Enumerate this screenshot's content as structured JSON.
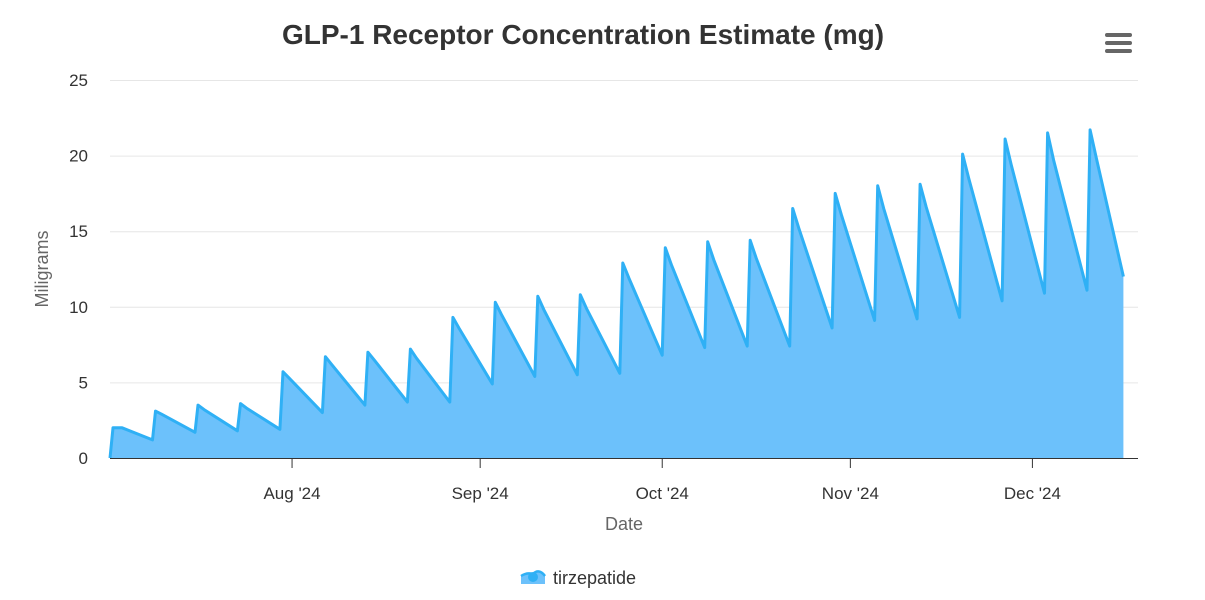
{
  "chart_data": {
    "type": "area",
    "title": "GLP-1 Receptor Concentration Estimate (mg)",
    "xlabel": "Date",
    "ylabel": "Miligrams",
    "x_unit": "days since 2024-07-02",
    "xlim": [
      0,
      169.4
    ],
    "ylim": [
      0,
      25
    ],
    "yticks": [
      0,
      5,
      10,
      15,
      20,
      25
    ],
    "xticks": [
      {
        "day": 30,
        "label": "Aug '24"
      },
      {
        "day": 61,
        "label": "Sep '24"
      },
      {
        "day": 91,
        "label": "Oct '24"
      },
      {
        "day": 122,
        "label": "Nov '24"
      },
      {
        "day": 152,
        "label": "Dec '24"
      }
    ],
    "grid": true,
    "legend_position": "bottom-center",
    "colors": {
      "line": "#2fb0f5",
      "fill": "#6cc1fb"
    },
    "series": [
      {
        "name": "tirzepatide",
        "points": [
          [
            0,
            0
          ],
          [
            0.5,
            2.0
          ],
          [
            2,
            2.0
          ],
          [
            7,
            1.2
          ],
          [
            7.5,
            3.1
          ],
          [
            8.5,
            2.9
          ],
          [
            14,
            1.7
          ],
          [
            14.5,
            3.5
          ],
          [
            15.5,
            3.2
          ],
          [
            21,
            1.8
          ],
          [
            21.5,
            3.6
          ],
          [
            22.5,
            3.3
          ],
          [
            28,
            1.9
          ],
          [
            28.5,
            5.7
          ],
          [
            29.5,
            5.3
          ],
          [
            35,
            3.0
          ],
          [
            35.5,
            6.7
          ],
          [
            36.5,
            6.2
          ],
          [
            42,
            3.5
          ],
          [
            42.5,
            7.0
          ],
          [
            43.5,
            6.5
          ],
          [
            49,
            3.7
          ],
          [
            49.5,
            7.2
          ],
          [
            50.5,
            6.6
          ],
          [
            56,
            3.7
          ],
          [
            56.5,
            9.3
          ],
          [
            57.5,
            8.6
          ],
          [
            63,
            4.9
          ],
          [
            63.5,
            10.3
          ],
          [
            64.5,
            9.5
          ],
          [
            70,
            5.4
          ],
          [
            70.5,
            10.7
          ],
          [
            71.5,
            9.8
          ],
          [
            77,
            5.5
          ],
          [
            77.5,
            10.8
          ],
          [
            78.5,
            9.9
          ],
          [
            84,
            5.6
          ],
          [
            84.5,
            12.9
          ],
          [
            85.5,
            11.9
          ],
          [
            91,
            6.8
          ],
          [
            91.5,
            13.9
          ],
          [
            92.5,
            12.8
          ],
          [
            98,
            7.3
          ],
          [
            98.5,
            14.3
          ],
          [
            99.5,
            13.1
          ],
          [
            105,
            7.4
          ],
          [
            105.5,
            14.4
          ],
          [
            106.5,
            13.2
          ],
          [
            112,
            7.4
          ],
          [
            112.5,
            16.5
          ],
          [
            113.5,
            15.2
          ],
          [
            119,
            8.6
          ],
          [
            119.5,
            17.5
          ],
          [
            120.5,
            16.1
          ],
          [
            126,
            9.1
          ],
          [
            126.5,
            18.0
          ],
          [
            127.5,
            16.5
          ],
          [
            133,
            9.2
          ],
          [
            133.5,
            18.1
          ],
          [
            134.5,
            16.6
          ],
          [
            140,
            9.3
          ],
          [
            140.5,
            20.1
          ],
          [
            141.5,
            18.5
          ],
          [
            147,
            10.4
          ],
          [
            147.5,
            21.1
          ],
          [
            148.5,
            19.4
          ],
          [
            154,
            10.9
          ],
          [
            154.5,
            21.5
          ],
          [
            155.5,
            19.7
          ],
          [
            161,
            11.1
          ],
          [
            161.5,
            21.7
          ],
          [
            162.5,
            19.9
          ],
          [
            167,
            12.0
          ]
        ]
      }
    ]
  },
  "menu_icon": "hamburger-menu-icon"
}
